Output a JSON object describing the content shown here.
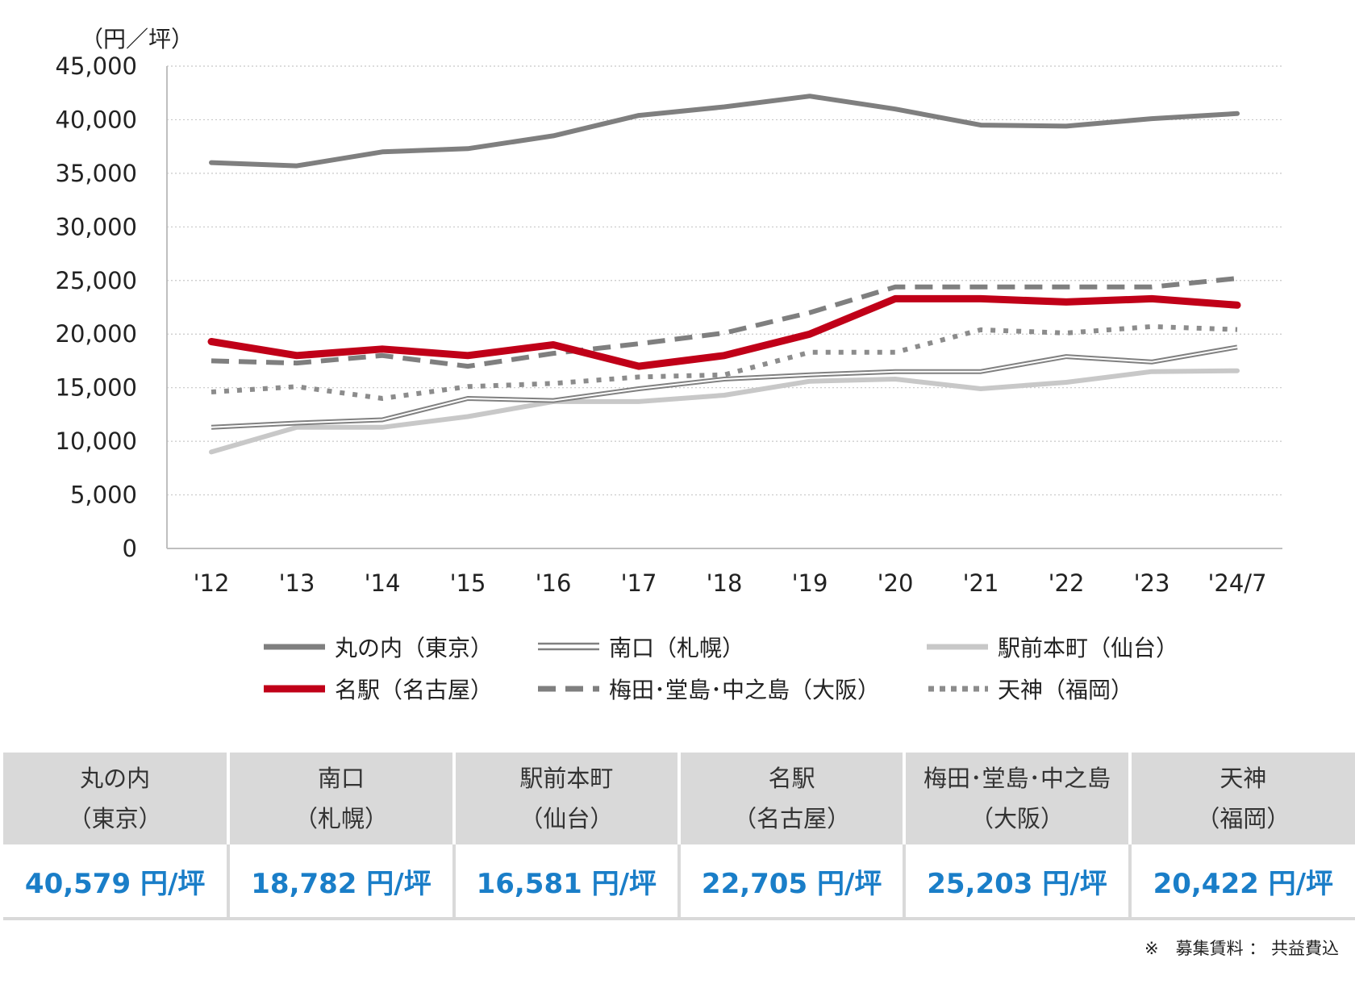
{
  "chart_data": {
    "type": "line",
    "ylabel": "（円／坪）",
    "ylim": [
      0,
      45000
    ],
    "yticks": [
      0,
      5000,
      10000,
      15000,
      20000,
      25000,
      30000,
      35000,
      40000,
      45000
    ],
    "ytick_labels": [
      "0",
      "5,000",
      "10,000",
      "15,000",
      "20,000",
      "25,000",
      "30,000",
      "35,000",
      "40,000",
      "45,000"
    ],
    "categories": [
      "'12",
      "'13",
      "'14",
      "'15",
      "'16",
      "'17",
      "'18",
      "'19",
      "'20",
      "'21",
      "'22",
      "'23",
      "'24/7"
    ],
    "grid": true,
    "series": [
      {
        "name": "丸の内（東京）",
        "style": "solid",
        "color": "#7f7f7f",
        "values": [
          36000,
          35700,
          37000,
          37300,
          38500,
          40400,
          41200,
          42200,
          41000,
          39500,
          39400,
          40100,
          40579
        ]
      },
      {
        "name": "南口（札幌）",
        "style": "double",
        "color": "#808080",
        "values": [
          11300,
          11700,
          12000,
          14000,
          13800,
          14900,
          15800,
          16200,
          16500,
          16500,
          17900,
          17400,
          18782
        ]
      },
      {
        "name": "駅前本町（仙台）",
        "style": "solid",
        "color": "#c8c8c8",
        "values": [
          9000,
          11300,
          11300,
          12300,
          13700,
          13700,
          14300,
          15600,
          15800,
          14900,
          15500,
          16500,
          16581
        ]
      },
      {
        "name": "名駅（名古屋）",
        "style": "solid",
        "color": "#c00018",
        "values": [
          19300,
          18000,
          18600,
          18000,
          19000,
          17000,
          18000,
          20000,
          23300,
          23300,
          23000,
          23300,
          22705
        ]
      },
      {
        "name": "梅田･堂島･中之島（大阪）",
        "style": "dashed",
        "color": "#7f7f7f",
        "values": [
          17500,
          17300,
          18000,
          17000,
          18200,
          19100,
          20100,
          22000,
          24400,
          24400,
          24400,
          24400,
          25203
        ]
      },
      {
        "name": "天神（福岡）",
        "style": "dotted",
        "color": "#8c8c8c",
        "values": [
          14600,
          15100,
          14000,
          15100,
          15400,
          16000,
          16200,
          18300,
          18300,
          20400,
          20100,
          20700,
          20422
        ]
      }
    ]
  },
  "table": {
    "headers": [
      {
        "line1": "丸の内",
        "line2": "（東京）"
      },
      {
        "line1": "南口",
        "line2": "（札幌）"
      },
      {
        "line1": "駅前本町",
        "line2": "（仙台）"
      },
      {
        "line1": "名駅",
        "line2": "（名古屋）"
      },
      {
        "line1": "梅田･堂島･中之島",
        "line2": "（大阪）"
      },
      {
        "line1": "天神",
        "line2": "（福岡）"
      }
    ],
    "values": [
      "40,579 円/坪",
      "18,782 円/坪",
      "16,581 円/坪",
      "22,705 円/坪",
      "25,203 円/坪",
      "20,422 円/坪"
    ]
  },
  "note": "※　募集賃料 ： 共益費込"
}
